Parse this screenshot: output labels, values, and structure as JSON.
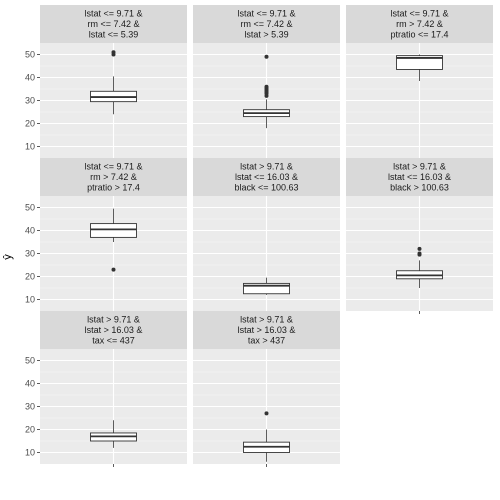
{
  "chart_data": {
    "type": "box",
    "ylabel": "ŷ",
    "ylim": [
      5,
      55
    ],
    "yticks": [
      10,
      20,
      30,
      40,
      50
    ],
    "panels": [
      {
        "strip": [
          "lstat <= 9.71 &",
          "rm <= 7.42 &",
          "lstat <= 5.39"
        ],
        "box": {
          "min": 24,
          "q1": 29.5,
          "median": 31.5,
          "q3": 34,
          "max": 40.5
        },
        "outliers": [
          50,
          51
        ]
      },
      {
        "strip": [
          "lstat <= 9.71 &",
          "rm <= 7.42 &",
          "lstat > 5.39"
        ],
        "box": {
          "min": 18,
          "q1": 23,
          "median": 24.5,
          "q3": 26,
          "max": 30.5
        },
        "outliers": [
          32,
          33,
          33.5,
          34,
          34.5,
          35,
          35.5,
          36,
          49
        ]
      },
      {
        "strip": [
          "lstat <= 9.71 &",
          "rm > 7.42 &",
          "ptratio <= 17.4"
        ],
        "box": {
          "min": 38.5,
          "q1": 43.5,
          "median": 48.5,
          "q3": 49.5,
          "max": 50
        },
        "outliers": []
      },
      {
        "strip": [
          "lstat <= 9.71 &",
          "rm > 7.42 &",
          "ptratio > 17.4"
        ],
        "box": {
          "min": 35,
          "q1": 37,
          "median": 40.5,
          "q3": 43,
          "max": 49.5
        },
        "outliers": [
          23
        ]
      },
      {
        "strip": [
          "lstat > 9.71 &",
          "lstat <= 16.03 &",
          "black <= 100.63"
        ],
        "box": {
          "min": 12,
          "q1": 12.5,
          "median": 16,
          "q3": 17,
          "max": 19.5
        },
        "outliers": []
      },
      {
        "strip": [
          "lstat > 9.71 &",
          "lstat <= 16.03 &",
          "black > 100.63"
        ],
        "box": {
          "min": 15,
          "q1": 19,
          "median": 20.5,
          "q3": 22.5,
          "max": 27
        },
        "outliers": [
          29.5,
          30,
          32
        ]
      },
      {
        "strip": [
          "lstat > 9.71 &",
          "lstat > 16.03 &",
          "tax <= 437"
        ],
        "box": {
          "min": 12,
          "q1": 15,
          "median": 17,
          "q3": 18.5,
          "max": 24
        },
        "outliers": []
      },
      {
        "strip": [
          "lstat > 9.71 &",
          "lstat > 16.03 &",
          "tax > 437"
        ],
        "box": {
          "min": 6,
          "q1": 10,
          "median": 12.5,
          "q3": 14.5,
          "max": 20
        },
        "outliers": [
          27
        ]
      }
    ]
  }
}
